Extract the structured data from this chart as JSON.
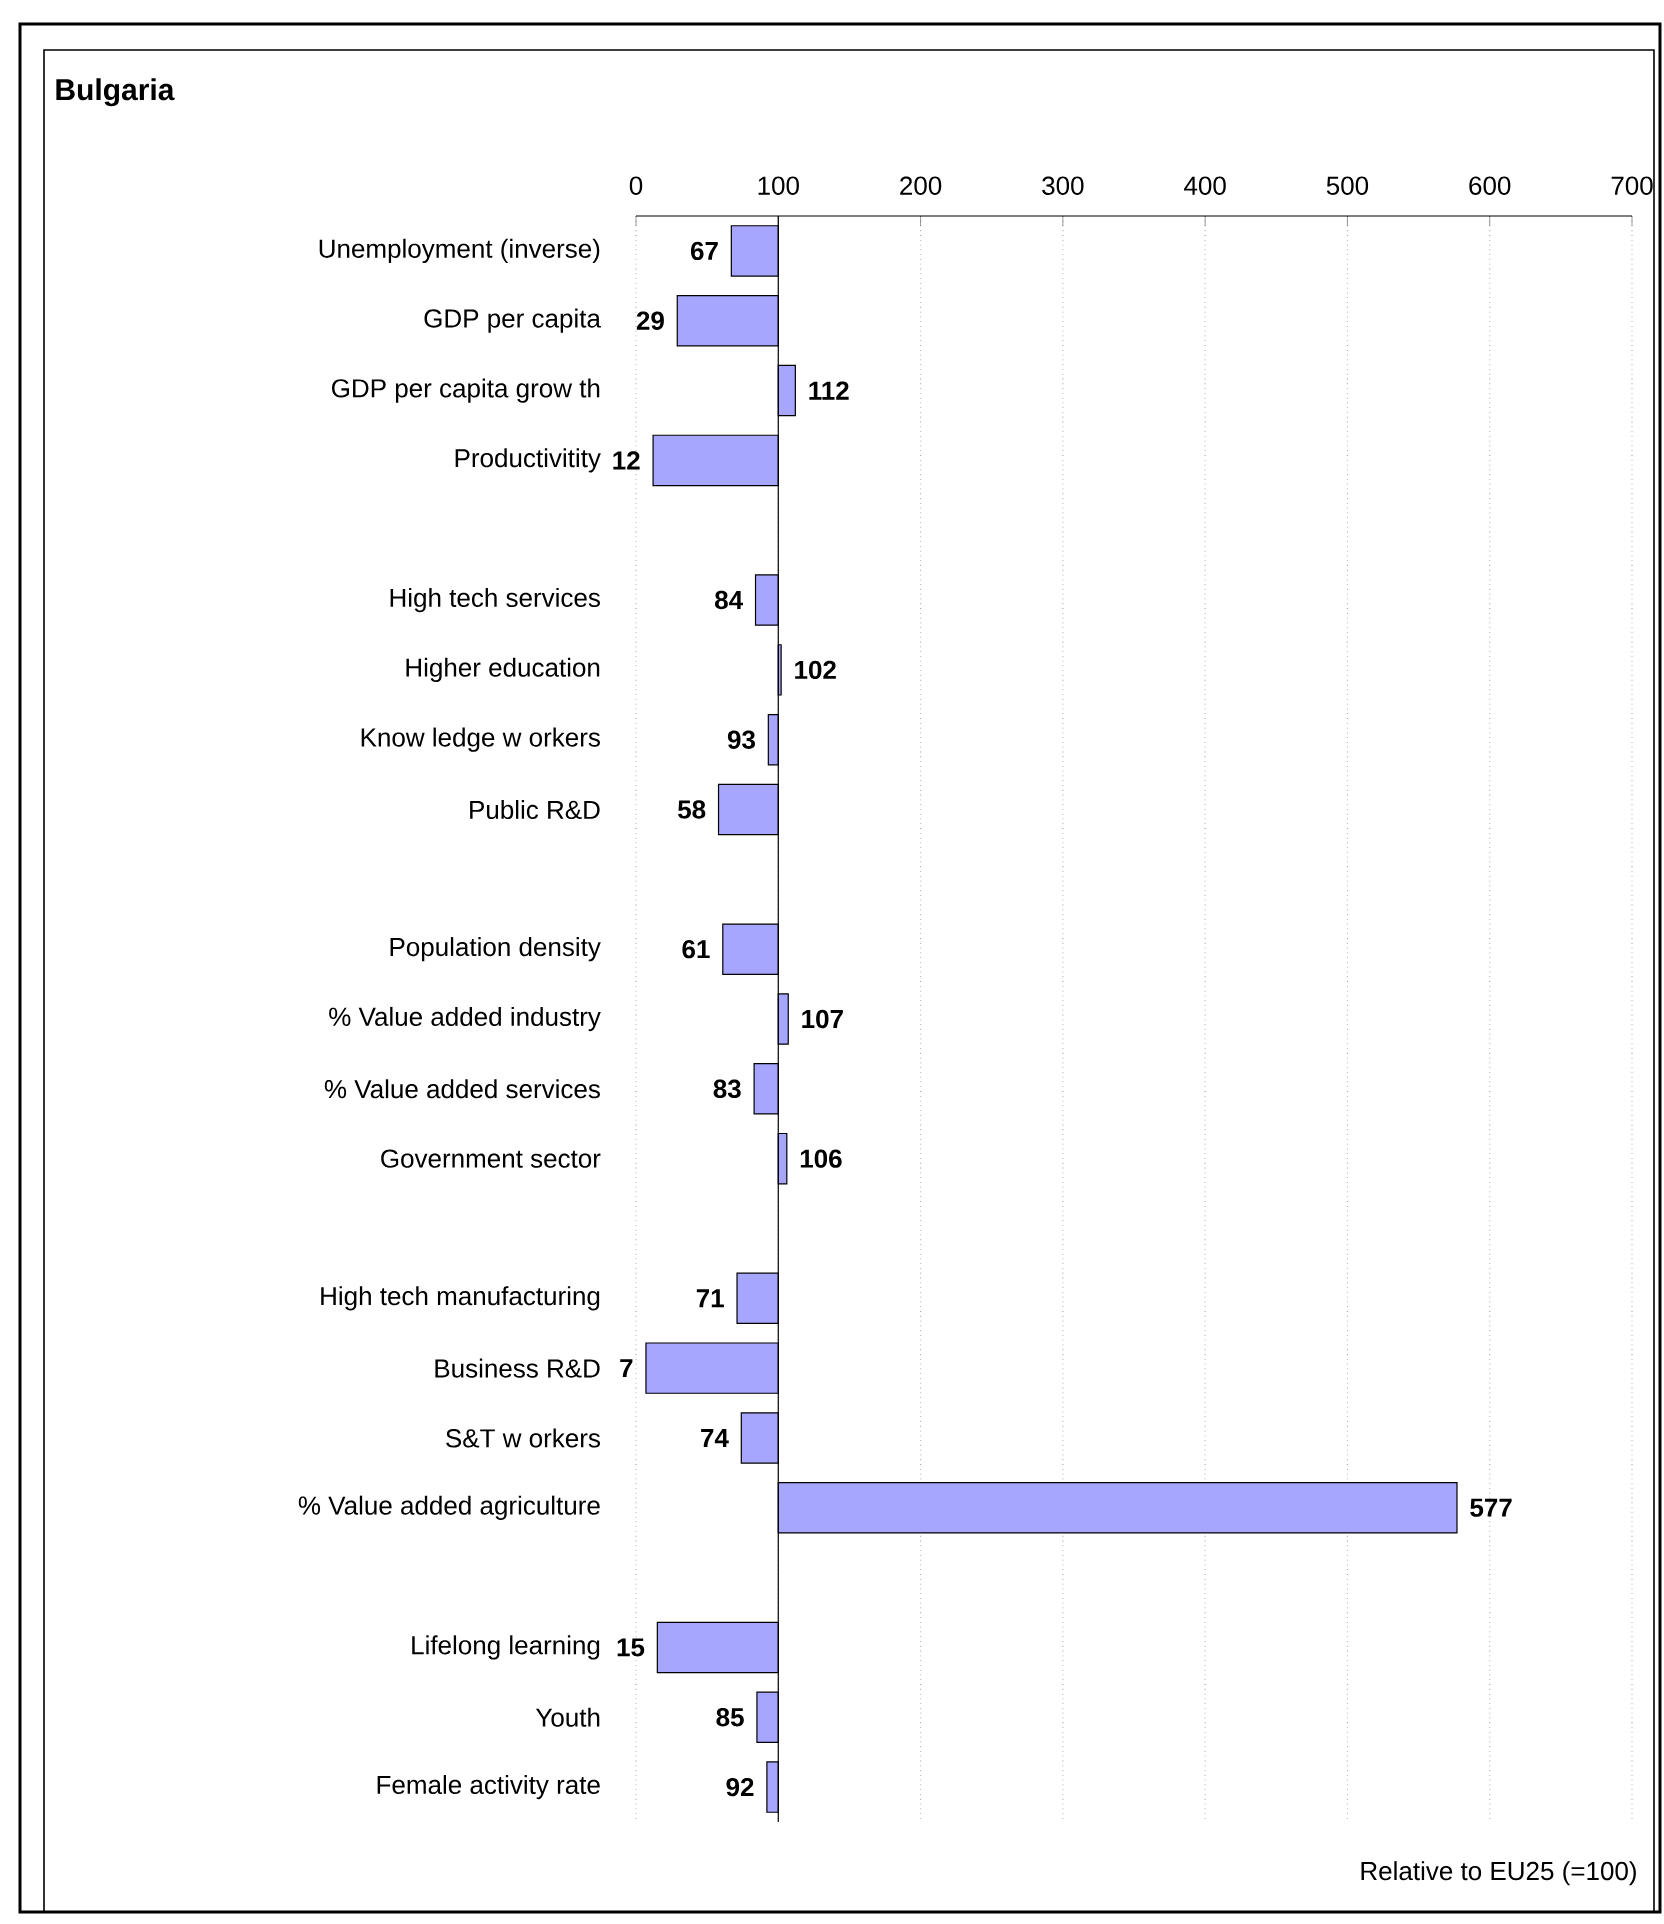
{
  "chart_data": {
    "type": "bar",
    "orientation": "horizontal",
    "title": "Bulgaria",
    "categories": [
      "Unemployment (inverse)",
      "GDP per capita",
      "GDP per capita grow th",
      "Productivitity",
      null,
      "High tech services",
      "Higher education",
      "Know ledge w orkers",
      "Public R&D",
      null,
      "Population density",
      "% Value added industry",
      "% Value added services",
      "Government sector",
      null,
      "High tech manufacturing",
      "Business R&D",
      "S&T w orkers",
      "% Value added agriculture",
      null,
      "Lifelong learning",
      "Youth",
      "Female activity rate"
    ],
    "base": [
      100,
      100,
      100,
      100,
      null,
      100,
      100,
      100,
      100,
      null,
      100,
      100,
      100,
      100,
      null,
      100,
      100,
      100,
      100,
      null,
      100,
      100,
      100
    ],
    "values": [
      -33,
      -71,
      12,
      -88,
      null,
      -16,
      2,
      -7,
      -42,
      null,
      -39,
      7,
      -17,
      6,
      null,
      -29,
      -93,
      -26,
      477,
      null,
      -85,
      -15,
      -8
    ],
    "value_labels": [
      "67",
      "29",
      "112",
      "12",
      null,
      "84",
      "102",
      "93",
      "58",
      null,
      "61",
      "107",
      "83",
      "106",
      null,
      "71",
      "7",
      "74",
      "577",
      null,
      "15",
      "85",
      "92"
    ],
    "color": "#a6a6ff",
    "xlim": [
      0,
      700
    ],
    "xticks": [
      0,
      100,
      200,
      300,
      400,
      500,
      600,
      700
    ],
    "grid": "x",
    "ref_lines": [
      {
        "axis": "x",
        "value": 100
      }
    ],
    "annotations": [
      "Relative to EU25 (=100)"
    ]
  }
}
